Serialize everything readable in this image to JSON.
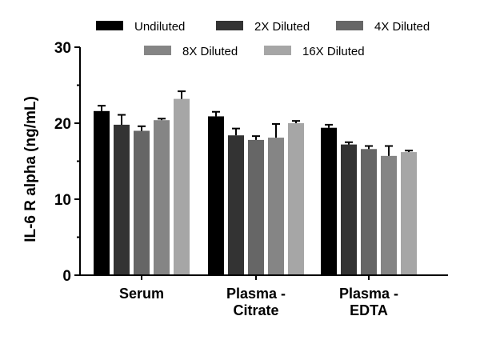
{
  "chart_data": {
    "type": "bar",
    "title": "",
    "xlabel": "",
    "ylabel": "IL-6 R alpha (ng/mL)",
    "ylim": [
      0,
      30
    ],
    "yticks": [
      0,
      10,
      20,
      30
    ],
    "grid": false,
    "legend_position": "top",
    "categories": [
      [
        "Serum"
      ],
      [
        "Plasma -",
        "Citrate"
      ],
      [
        "Plasma -",
        "EDTA"
      ]
    ],
    "series": [
      {
        "name": "Undiluted",
        "color": "#000000",
        "values": [
          21.6,
          20.9,
          19.4
        ],
        "errors": [
          0.7,
          0.6,
          0.4
        ]
      },
      {
        "name": "2X Diluted",
        "color": "#333333",
        "values": [
          19.8,
          18.4,
          17.2
        ],
        "errors": [
          1.3,
          0.9,
          0.3
        ]
      },
      {
        "name": "4X Diluted",
        "color": "#666666",
        "values": [
          19.0,
          17.8,
          16.6
        ],
        "errors": [
          0.6,
          0.5,
          0.4
        ]
      },
      {
        "name": "8X Diluted",
        "color": "#858585",
        "values": [
          20.4,
          18.1,
          15.7
        ],
        "errors": [
          0.2,
          1.8,
          1.3
        ]
      },
      {
        "name": "16X Diluted",
        "color": "#a6a6a6",
        "values": [
          23.2,
          20.0,
          16.2
        ],
        "errors": [
          1.0,
          0.3,
          0.2
        ]
      }
    ]
  }
}
